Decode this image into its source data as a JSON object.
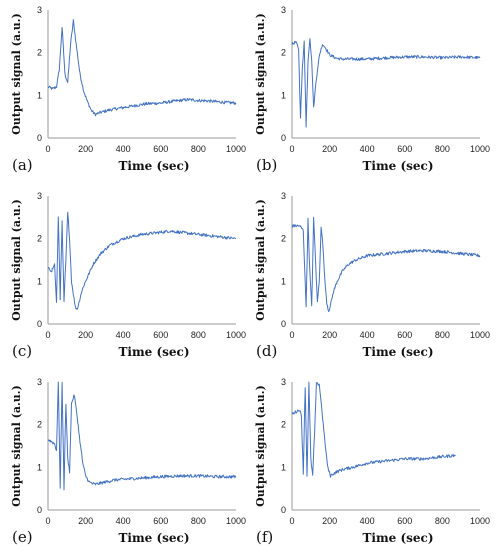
{
  "axis_labels": {
    "x": "Time  (sec)",
    "y": "Output signal  (a.u.)"
  },
  "colors": {
    "series": "#4472c4",
    "axis": "#9a9a9a"
  },
  "chart_data": [
    {
      "type": "line",
      "panel": "(a)",
      "xlim": [
        0,
        1000
      ],
      "ylim": [
        0,
        3
      ],
      "xticks": [
        0,
        200,
        400,
        600,
        800,
        1000
      ],
      "yticks": [
        0,
        1,
        2,
        3
      ],
      "xlabel": "Time  (sec)",
      "ylabel": "Output signal  (a.u.)",
      "series": [
        {
          "x": [
            0,
            25,
            45,
            60,
            75,
            90,
            105,
            120,
            135,
            150,
            170,
            190,
            210,
            230,
            250,
            280,
            320,
            380,
            450,
            520,
            600,
            650,
            700,
            750,
            800,
            850,
            900,
            950,
            1000
          ],
          "y": [
            1.2,
            1.15,
            1.2,
            1.6,
            2.6,
            1.5,
            1.3,
            2.2,
            2.75,
            2.2,
            1.5,
            1.1,
            0.85,
            0.65,
            0.55,
            0.6,
            0.65,
            0.7,
            0.75,
            0.8,
            0.82,
            0.85,
            0.88,
            0.9,
            0.88,
            0.87,
            0.85,
            0.83,
            0.82
          ]
        }
      ]
    },
    {
      "type": "line",
      "panel": "(b)",
      "xlim": [
        0,
        1000
      ],
      "ylim": [
        0,
        3
      ],
      "xticks": [
        0,
        200,
        400,
        600,
        800,
        1000
      ],
      "yticks": [
        0,
        1,
        2,
        3
      ],
      "xlabel": "Time  (sec)",
      "ylabel": "Output signal  (a.u.)",
      "series": [
        {
          "x": [
            0,
            20,
            35,
            45,
            55,
            65,
            75,
            85,
            95,
            105,
            115,
            125,
            135,
            145,
            155,
            165,
            180,
            200,
            230,
            260,
            300,
            400,
            500,
            600,
            700,
            800,
            900,
            1000
          ],
          "y": [
            2.2,
            2.25,
            2.1,
            0.5,
            1.6,
            2.3,
            0.25,
            1.8,
            2.35,
            1.8,
            0.7,
            1.2,
            1.6,
            1.9,
            2.1,
            2.2,
            2.1,
            1.95,
            1.88,
            1.85,
            1.85,
            1.85,
            1.88,
            1.9,
            1.9,
            1.88,
            1.9,
            1.88
          ]
        }
      ]
    },
    {
      "type": "line",
      "panel": "(c)",
      "xlim": [
        0,
        1000
      ],
      "ylim": [
        0,
        3
      ],
      "xticks": [
        0,
        200,
        400,
        600,
        800,
        1000
      ],
      "yticks": [
        0,
        1,
        2,
        3
      ],
      "xlabel": "Time  (sec)",
      "ylabel": "Output signal  (a.u.)",
      "series": [
        {
          "x": [
            0,
            20,
            35,
            45,
            55,
            65,
            75,
            85,
            95,
            105,
            115,
            125,
            135,
            145,
            155,
            165,
            175,
            190,
            210,
            240,
            280,
            330,
            400,
            500,
            600,
            650,
            700,
            800,
            900,
            1000
          ],
          "y": [
            1.3,
            1.25,
            1.4,
            0.5,
            2.5,
            0.6,
            2.4,
            0.5,
            1.5,
            2.6,
            2.0,
            1.0,
            0.7,
            0.4,
            0.35,
            0.5,
            0.7,
            0.9,
            1.1,
            1.4,
            1.65,
            1.85,
            2.0,
            2.1,
            2.15,
            2.18,
            2.15,
            2.1,
            2.05,
            2.0
          ]
        }
      ]
    },
    {
      "type": "line",
      "panel": "(d)",
      "xlim": [
        0,
        1000
      ],
      "ylim": [
        0,
        3
      ],
      "xticks": [
        0,
        200,
        400,
        600,
        800,
        1000
      ],
      "yticks": [
        0,
        1,
        2,
        3
      ],
      "xlabel": "Time  (sec)",
      "ylabel": "Output signal  (a.u.)",
      "series": [
        {
          "x": [
            0,
            40,
            60,
            75,
            85,
            95,
            105,
            115,
            125,
            135,
            145,
            155,
            165,
            175,
            185,
            195,
            205,
            220,
            240,
            270,
            300,
            340,
            400,
            500,
            600,
            700,
            800,
            900,
            1000
          ],
          "y": [
            2.3,
            2.3,
            2.2,
            0.4,
            2.45,
            1.2,
            0.4,
            2.5,
            1.5,
            0.5,
            1.0,
            2.3,
            1.8,
            1.0,
            0.5,
            0.3,
            0.45,
            0.75,
            1.0,
            1.25,
            1.4,
            1.5,
            1.6,
            1.65,
            1.7,
            1.72,
            1.7,
            1.65,
            1.6
          ]
        }
      ]
    },
    {
      "type": "line",
      "panel": "(e)",
      "xlim": [
        0,
        1000
      ],
      "ylim": [
        0,
        3
      ],
      "xticks": [
        0,
        200,
        400,
        600,
        800,
        1000
      ],
      "yticks": [
        0,
        1,
        2,
        3
      ],
      "xlabel": "Time  (sec)",
      "ylabel": "Output signal  (a.u.)",
      "series": [
        {
          "x": [
            0,
            20,
            35,
            45,
            55,
            65,
            75,
            85,
            95,
            105,
            115,
            125,
            140,
            155,
            170,
            185,
            200,
            220,
            250,
            300,
            350,
            400,
            500,
            600,
            700,
            800,
            900,
            1000
          ],
          "y": [
            1.65,
            1.6,
            1.55,
            1.4,
            3.0,
            0.5,
            3.0,
            0.5,
            2.5,
            1.2,
            0.9,
            2.5,
            2.7,
            2.2,
            1.6,
            1.1,
            0.8,
            0.65,
            0.6,
            0.65,
            0.7,
            0.72,
            0.75,
            0.78,
            0.8,
            0.8,
            0.78,
            0.78
          ]
        }
      ]
    },
    {
      "type": "line",
      "panel": "(f)",
      "xlim": [
        0,
        1000
      ],
      "ylim": [
        0,
        3
      ],
      "xticks": [
        0,
        200,
        400,
        600,
        800,
        1000
      ],
      "yticks": [
        0,
        1,
        2,
        3
      ],
      "xlabel": "Time  (sec)",
      "ylabel": "Output signal  (a.u.)",
      "series": [
        {
          "x": [
            0,
            20,
            40,
            50,
            60,
            70,
            80,
            90,
            100,
            110,
            120,
            130,
            145,
            160,
            175,
            190,
            205,
            220,
            240,
            270,
            320,
            400,
            500,
            600,
            700,
            800,
            870
          ],
          "y": [
            2.25,
            2.3,
            2.35,
            2.2,
            0.85,
            2.9,
            0.8,
            3.0,
            1.2,
            0.8,
            1.8,
            2.95,
            2.95,
            2.3,
            1.6,
            1.0,
            0.8,
            0.85,
            0.9,
            0.95,
            1.0,
            1.1,
            1.15,
            1.2,
            1.2,
            1.25,
            1.28
          ]
        }
      ]
    }
  ]
}
